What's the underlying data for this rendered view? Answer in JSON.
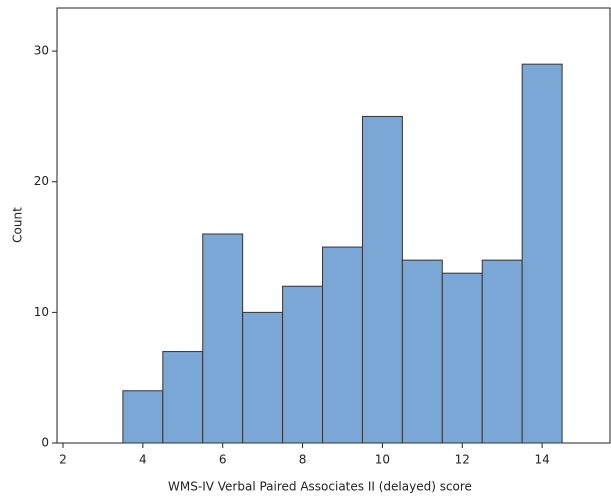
{
  "chart_data": {
    "type": "histogram",
    "x_label": "WMS-IV Verbal Paired Associates II (delayed) score",
    "y_label": "Count",
    "bins": [
      3.5,
      4.5,
      5.5,
      6.5,
      7.5,
      8.5,
      9.5,
      10.5,
      11.5,
      12.5,
      13.5,
      14.5
    ],
    "values": [
      4,
      7,
      16,
      10,
      12,
      15,
      25,
      14,
      13,
      14,
      29
    ],
    "color": "#7ba7d6",
    "xlim": [
      1.85,
      15.7
    ],
    "xticks": [
      2,
      4,
      6,
      8,
      10,
      12,
      14
    ],
    "ylim": [
      0,
      33.3
    ],
    "yticks": [
      0,
      10,
      20,
      30
    ]
  }
}
